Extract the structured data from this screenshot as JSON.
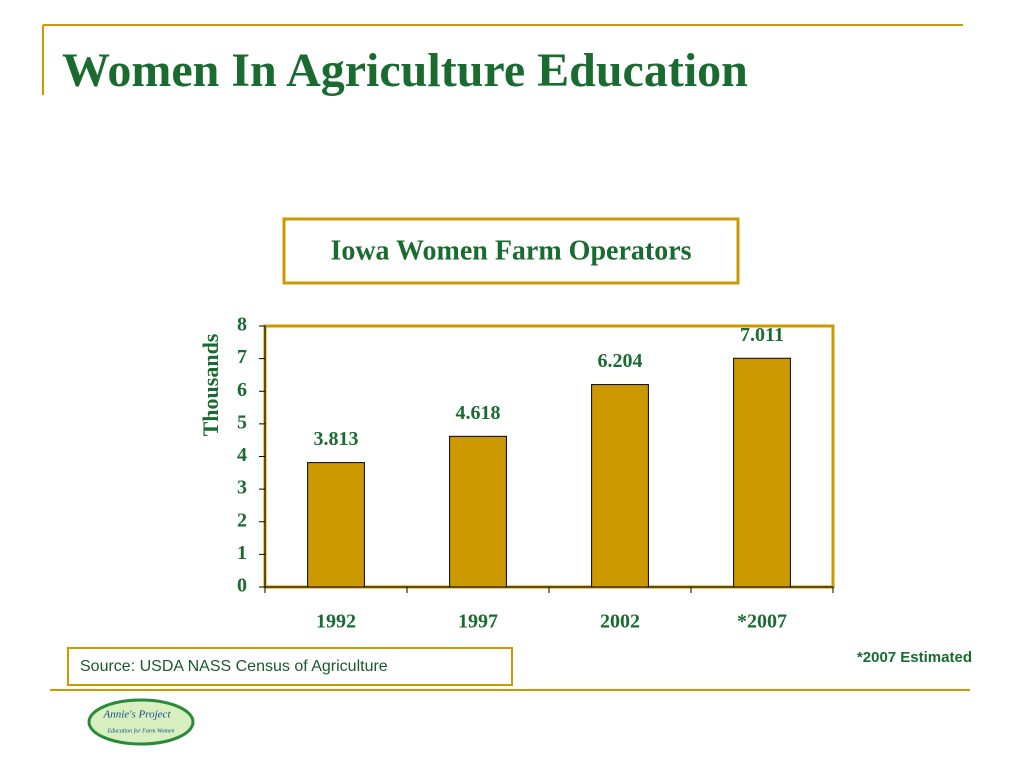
{
  "slide_title": "Women In Agriculture Education",
  "chart_data": {
    "type": "bar",
    "title": "Iowa Women Farm Operators",
    "y_label": "Thousands",
    "categories": [
      "1992",
      "1997",
      "2002",
      "*2007"
    ],
    "values": [
      3.813,
      4.618,
      6.204,
      7.011
    ],
    "color": "#cc9900",
    "ylim": [
      0,
      8
    ],
    "yticks": [
      0,
      1,
      2,
      3,
      4,
      5,
      6,
      7,
      8
    ],
    "grid": false
  },
  "source": "Source: USDA NASS Census of Agriculture",
  "footnote": "*2007 Estimated",
  "logo": {
    "name": "Annie's Project",
    "tagline": "Education for Farm Women"
  }
}
